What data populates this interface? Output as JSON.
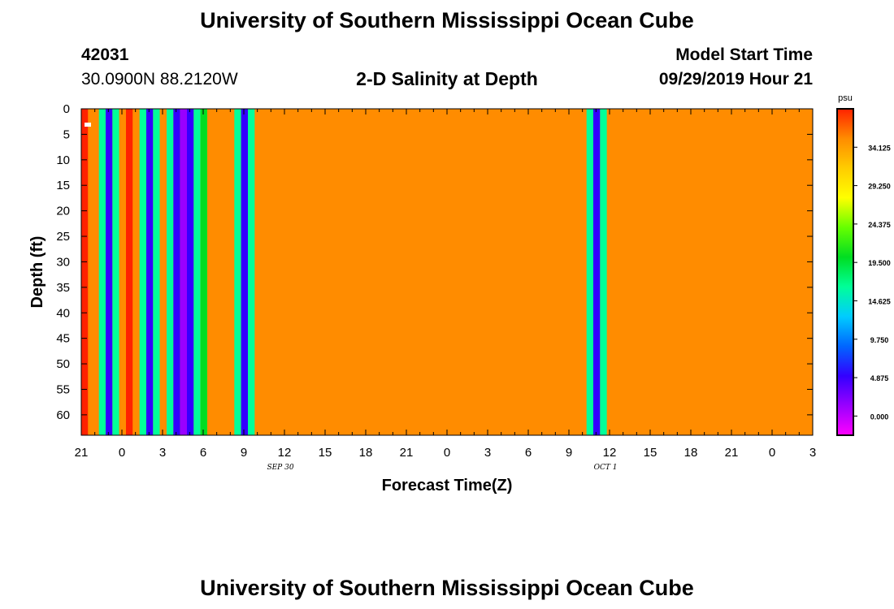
{
  "header": {
    "title": "University of Southern Mississippi Ocean Cube",
    "station_id": "42031",
    "station_location": "30.0900N 88.2120W",
    "plot_title": "2-D Salinity at Depth",
    "model_label": "Model Start Time",
    "model_start": "09/29/2019 Hour 21"
  },
  "footer": {
    "title": "University of Southern Mississippi Ocean Cube"
  },
  "chart_data": {
    "type": "heatmap",
    "title": "2-D Salinity at Depth",
    "xlabel": "Forecast Time(Z)",
    "ylabel": "Depth (ft)",
    "x_tick_labels": [
      "21",
      "0",
      "3",
      "6",
      "9",
      "12",
      "15",
      "18",
      "21",
      "0",
      "3",
      "6",
      "9",
      "12",
      "15",
      "18",
      "21",
      "0",
      "3"
    ],
    "x_range_hours": [
      0,
      54
    ],
    "day_labels": [
      {
        "text": "SEP 30",
        "hour": 15
      },
      {
        "text": "OCT 1",
        "hour": 39
      }
    ],
    "y_tick_labels": [
      "0",
      "5",
      "10",
      "15",
      "20",
      "25",
      "30",
      "35",
      "40",
      "45",
      "50",
      "55",
      "60"
    ],
    "y_values": [
      0,
      5,
      10,
      15,
      20,
      25,
      30,
      35,
      40,
      45,
      50,
      55,
      60
    ],
    "ylim": [
      0,
      64
    ],
    "colorbar": {
      "unit": "psu",
      "tick_labels": [
        "34.125",
        "29.250",
        "24.375",
        "19.500",
        "14.625",
        "9.750",
        "4.875",
        "0.000"
      ],
      "tick_values": [
        34.125,
        29.25,
        24.375,
        19.5,
        14.625,
        9.75,
        4.875,
        0
      ],
      "range": [
        -2.4375,
        39
      ],
      "stops": [
        "#ff00ff",
        "#9900ff",
        "#3300ff",
        "#0066ff",
        "#00ccff",
        "#00ff99",
        "#00dd22",
        "#66ff00",
        "#ffff00",
        "#ffcc00",
        "#ff8c00",
        "#ff2200"
      ]
    },
    "background_color": "#ff8c00",
    "background_value": 34,
    "time_bands": [
      {
        "start": 0.0,
        "end": 0.5,
        "color": "#ff2200"
      },
      {
        "start": 0.5,
        "end": 1.3,
        "color": "#ff8c00"
      },
      {
        "start": 1.3,
        "end": 1.8,
        "color": "#00ff99"
      },
      {
        "start": 1.8,
        "end": 2.3,
        "color": "#3300ff"
      },
      {
        "start": 2.3,
        "end": 2.8,
        "color": "#00ff99"
      },
      {
        "start": 2.8,
        "end": 3.3,
        "color": "#ff8c00"
      },
      {
        "start": 3.3,
        "end": 3.8,
        "color": "#ff2200"
      },
      {
        "start": 3.8,
        "end": 4.3,
        "color": "#ff8c00"
      },
      {
        "start": 4.3,
        "end": 4.8,
        "color": "#00ff99"
      },
      {
        "start": 4.8,
        "end": 5.3,
        "color": "#3300ff"
      },
      {
        "start": 5.3,
        "end": 5.8,
        "color": "#00ff99"
      },
      {
        "start": 5.8,
        "end": 6.3,
        "color": "#ff8c00"
      },
      {
        "start": 6.3,
        "end": 6.8,
        "color": "#00ff99"
      },
      {
        "start": 6.8,
        "end": 7.3,
        "color": "#3300ff"
      },
      {
        "start": 7.3,
        "end": 7.8,
        "color": "#9900ff"
      },
      {
        "start": 7.8,
        "end": 8.3,
        "color": "#3300ff"
      },
      {
        "start": 8.3,
        "end": 8.8,
        "color": "#00ff99"
      },
      {
        "start": 8.8,
        "end": 9.3,
        "color": "#00dd22"
      },
      {
        "start": 11.3,
        "end": 11.8,
        "color": "#00ff99"
      },
      {
        "start": 11.8,
        "end": 12.3,
        "color": "#3300ff"
      },
      {
        "start": 12.3,
        "end": 12.8,
        "color": "#00ff99"
      },
      {
        "start": 37.3,
        "end": 37.8,
        "color": "#00ff99"
      },
      {
        "start": 37.8,
        "end": 38.3,
        "color": "#3300ff"
      },
      {
        "start": 38.3,
        "end": 38.8,
        "color": "#00ff99"
      }
    ]
  }
}
